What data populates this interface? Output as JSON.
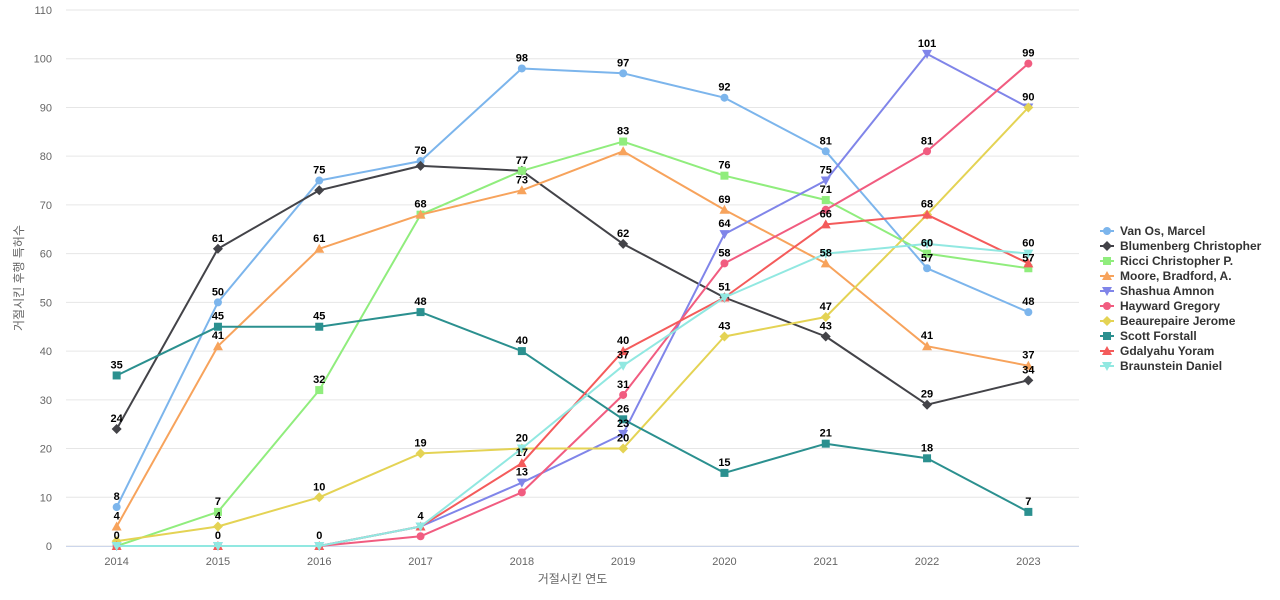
{
  "chart_data": {
    "type": "line",
    "title": "",
    "xlabel": "거절시킨 연도",
    "ylabel": "거절시킨 후행 특허수",
    "ylim": [
      0,
      110
    ],
    "yticks": [
      0,
      10,
      20,
      30,
      40,
      50,
      60,
      70,
      80,
      90,
      100,
      110
    ],
    "categories": [
      "2014",
      "2015",
      "2016",
      "2017",
      "2018",
      "2019",
      "2020",
      "2021",
      "2022",
      "2023"
    ],
    "grid": true,
    "legend_position": "right",
    "series": [
      {
        "name": "Van Os, Marcel",
        "color": "#7cb5ec",
        "marker": "circle",
        "values": [
          8,
          50,
          75,
          79,
          98,
          97,
          92,
          81,
          57,
          48
        ]
      },
      {
        "name": "Blumenberg Christopher",
        "color": "#434348",
        "marker": "diamond",
        "values": [
          24,
          61,
          73,
          78,
          77,
          62,
          51,
          43,
          29,
          34
        ]
      },
      {
        "name": "Ricci Christopher P.",
        "color": "#90ed7d",
        "marker": "square",
        "values": [
          0,
          7,
          32,
          68,
          77,
          83,
          76,
          71,
          60,
          57
        ]
      },
      {
        "name": "Moore, Bradford, A.",
        "color": "#f7a35c",
        "marker": "triangle",
        "values": [
          4,
          41,
          61,
          68,
          73,
          81,
          69,
          58,
          41,
          37
        ]
      },
      {
        "name": "Shashua Amnon",
        "color": "#8085e9",
        "marker": "triangle-down",
        "values": [
          0,
          0,
          0,
          4,
          13,
          23,
          64,
          75,
          101,
          90
        ]
      },
      {
        "name": "Hayward Gregory",
        "color": "#f15c80",
        "marker": "circle",
        "values": [
          0,
          0,
          0,
          2,
          11,
          31,
          58,
          69,
          81,
          99
        ]
      },
      {
        "name": "Beaurepaire Jerome",
        "color": "#e4d354",
        "marker": "diamond",
        "values": [
          1,
          4,
          10,
          19,
          20,
          20,
          43,
          47,
          68,
          90
        ]
      },
      {
        "name": "Scott Forstall",
        "color": "#2b908f",
        "marker": "square",
        "values": [
          35,
          45,
          45,
          48,
          40,
          26,
          15,
          21,
          18,
          7
        ]
      },
      {
        "name": "Gdalyahu Yoram",
        "color": "#f45b5b",
        "marker": "triangle",
        "values": [
          0,
          0,
          0,
          4,
          17,
          40,
          51,
          66,
          68,
          58
        ]
      },
      {
        "name": "Braunstein Daniel",
        "color": "#91e8e1",
        "marker": "triangle-down",
        "values": [
          0,
          0,
          0,
          4,
          20,
          37,
          51,
          60,
          62,
          60
        ]
      }
    ],
    "data_labels": [
      {
        "x": "2014",
        "value": 24
      },
      {
        "x": "2014",
        "value": 35
      },
      {
        "x": "2014",
        "value": 8
      },
      {
        "x": "2014",
        "value": 4
      },
      {
        "x": "2014",
        "value": 0
      },
      {
        "x": "2015",
        "value": 61
      },
      {
        "x": "2015",
        "value": 50
      },
      {
        "x": "2015",
        "value": 45
      },
      {
        "x": "2015",
        "value": 41
      },
      {
        "x": "2015",
        "value": 7
      },
      {
        "x": "2015",
        "value": 4
      },
      {
        "x": "2015",
        "value": 0
      },
      {
        "x": "2016",
        "value": 75
      },
      {
        "x": "2016",
        "value": 61
      },
      {
        "x": "2016",
        "value": 45
      },
      {
        "x": "2016",
        "value": 32
      },
      {
        "x": "2016",
        "value": 10
      },
      {
        "x": "2016",
        "value": 0
      },
      {
        "x": "2017",
        "value": 79
      },
      {
        "x": "2017",
        "value": 68
      },
      {
        "x": "2017",
        "value": 48
      },
      {
        "x": "2017",
        "value": 19
      },
      {
        "x": "2017",
        "value": 4
      },
      {
        "x": "2018",
        "value": 98
      },
      {
        "x": "2018",
        "value": 77
      },
      {
        "x": "2018",
        "value": 73
      },
      {
        "x": "2018",
        "value": 40
      },
      {
        "x": "2018",
        "value": 20
      },
      {
        "x": "2018",
        "value": 17
      },
      {
        "x": "2018",
        "value": 13
      },
      {
        "x": "2019",
        "value": 97
      },
      {
        "x": "2019",
        "value": 83
      },
      {
        "x": "2019",
        "value": 62
      },
      {
        "x": "2019",
        "value": 40
      },
      {
        "x": "2019",
        "value": 37
      },
      {
        "x": "2019",
        "value": 31
      },
      {
        "x": "2019",
        "value": 26
      },
      {
        "x": "2019",
        "value": 23
      },
      {
        "x": "2019",
        "value": 20
      },
      {
        "x": "2020",
        "value": 92
      },
      {
        "x": "2020",
        "value": 76
      },
      {
        "x": "2020",
        "value": 69
      },
      {
        "x": "2020",
        "value": 64
      },
      {
        "x": "2020",
        "value": 58
      },
      {
        "x": "2020",
        "value": 51
      },
      {
        "x": "2020",
        "value": 43
      },
      {
        "x": "2020",
        "value": 15
      },
      {
        "x": "2021",
        "value": 81
      },
      {
        "x": "2021",
        "value": 75
      },
      {
        "x": "2021",
        "value": 71
      },
      {
        "x": "2021",
        "value": 66
      },
      {
        "x": "2021",
        "value": 58
      },
      {
        "x": "2021",
        "value": 47
      },
      {
        "x": "2021",
        "value": 43
      },
      {
        "x": "2021",
        "value": 21
      },
      {
        "x": "2022",
        "value": 101
      },
      {
        "x": "2022",
        "value": 81
      },
      {
        "x": "2022",
        "value": 68
      },
      {
        "x": "2022",
        "value": 60
      },
      {
        "x": "2022",
        "value": 57
      },
      {
        "x": "2022",
        "value": 41
      },
      {
        "x": "2022",
        "value": 29
      },
      {
        "x": "2022",
        "value": 18
      },
      {
        "x": "2023",
        "value": 99
      },
      {
        "x": "2023",
        "value": 90
      },
      {
        "x": "2023",
        "value": 60
      },
      {
        "x": "2023",
        "value": 57
      },
      {
        "x": "2023",
        "value": 48
      },
      {
        "x": "2023",
        "value": 37
      },
      {
        "x": "2023",
        "value": 34
      },
      {
        "x": "2023",
        "value": 7
      }
    ]
  }
}
